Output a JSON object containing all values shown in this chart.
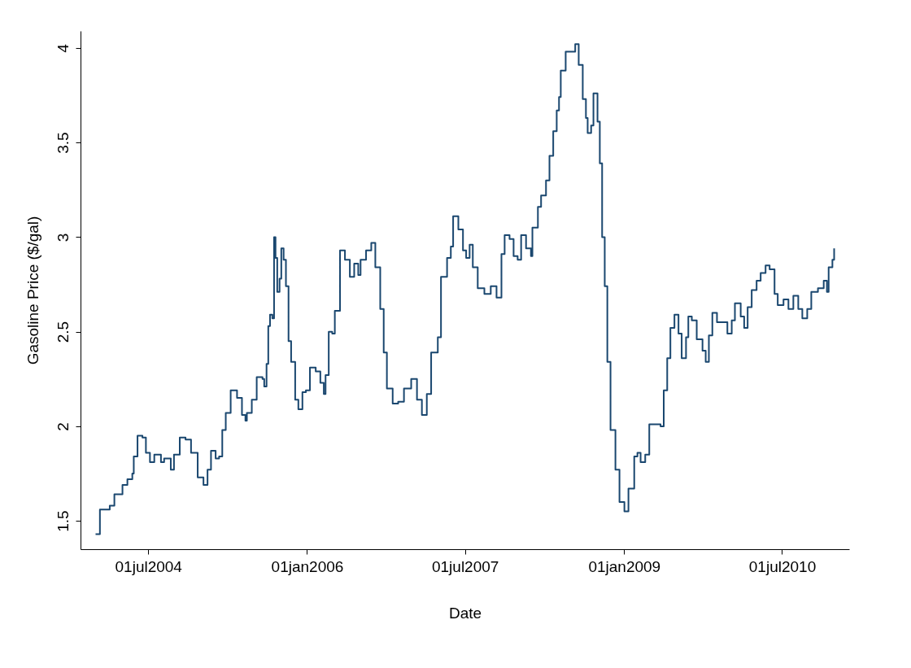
{
  "chart_data": {
    "type": "step",
    "xlabel": "Date",
    "ylabel": "Gasoline Price ($/gal)",
    "xlim": [
      "2003-11-10",
      "2011-02-18"
    ],
    "ylim": [
      1.35,
      4.09
    ],
    "xticks": [
      {
        "value": "2004-07-01",
        "label": "01jul2004"
      },
      {
        "value": "2006-01-01",
        "label": "01jan2006"
      },
      {
        "value": "2007-07-01",
        "label": "01jul2007"
      },
      {
        "value": "2009-01-01",
        "label": "01jan2009"
      },
      {
        "value": "2010-07-01",
        "label": "01jul2010"
      }
    ],
    "yticks": [
      1.5,
      2,
      2.5,
      3,
      3.5,
      4
    ],
    "grid": false,
    "series": [
      {
        "color": "#1a476f",
        "x": [
          "2004-01-01",
          "2004-01-16",
          "2004-02-19",
          "2004-03-06",
          "2004-04-03",
          "2004-04-20",
          "2004-05-07",
          "2004-05-12",
          "2004-05-25",
          "2004-06-11",
          "2004-06-23",
          "2004-07-07",
          "2004-07-22",
          "2004-08-14",
          "2004-08-25",
          "2004-09-17",
          "2004-09-28",
          "2004-10-18",
          "2004-11-07",
          "2004-11-26",
          "2004-12-19",
          "2005-01-08",
          "2005-01-22",
          "2005-02-03",
          "2005-02-19",
          "2005-03-03",
          "2005-03-14",
          "2005-03-26",
          "2005-04-12",
          "2005-05-04",
          "2005-05-21",
          "2005-06-02",
          "2005-06-07",
          "2005-06-24",
          "2005-07-11",
          "2005-07-31",
          "2005-08-06",
          "2005-08-14",
          "2005-08-20",
          "2005-08-26",
          "2005-09-03",
          "2005-09-09",
          "2005-09-14",
          "2005-09-20",
          "2005-09-28",
          "2005-10-04",
          "2005-10-12",
          "2005-10-20",
          "2005-10-29",
          "2005-11-07",
          "2005-11-21",
          "2005-12-02",
          "2005-12-16",
          "2005-12-28",
          "2006-01-11",
          "2006-01-31",
          "2006-02-16",
          "2006-02-28",
          "2006-03-06",
          "2006-03-17",
          "2006-03-29",
          "2006-04-07",
          "2006-04-25",
          "2006-05-12",
          "2006-05-29",
          "2006-06-13",
          "2006-06-27",
          "2006-07-05",
          "2006-07-24",
          "2006-08-11",
          "2006-08-25",
          "2006-09-11",
          "2006-09-23",
          "2006-10-04",
          "2006-10-24",
          "2006-11-12",
          "2006-12-02",
          "2006-12-27",
          "2007-01-16",
          "2007-02-02",
          "2007-02-19",
          "2007-03-06",
          "2007-03-29",
          "2007-04-09",
          "2007-04-30",
          "2007-05-13",
          "2007-05-21",
          "2007-06-08",
          "2007-06-24",
          "2007-07-05",
          "2007-07-17",
          "2007-07-28",
          "2007-08-14",
          "2007-09-06",
          "2007-09-28",
          "2007-10-18",
          "2007-11-04",
          "2007-11-15",
          "2007-12-02",
          "2007-12-16",
          "2007-12-30",
          "2008-01-11",
          "2008-01-28",
          "2008-02-14",
          "2008-02-19",
          "2008-03-09",
          "2008-03-20",
          "2008-04-06",
          "2008-04-18",
          "2008-05-01",
          "2008-05-13",
          "2008-05-21",
          "2008-05-27",
          "2008-06-13",
          "2008-06-30",
          "2008-07-16",
          "2008-07-28",
          "2008-08-11",
          "2008-08-22",
          "2008-08-28",
          "2008-09-09",
          "2008-09-17",
          "2008-10-01",
          "2008-10-09",
          "2008-10-17",
          "2008-10-26",
          "2008-11-04",
          "2008-11-15",
          "2008-12-02",
          "2008-12-16",
          "2009-01-02",
          "2009-01-16",
          "2009-02-05",
          "2009-02-16",
          "2009-02-27",
          "2009-03-15",
          "2009-03-29",
          "2009-04-23",
          "2009-05-07",
          "2009-05-18",
          "2009-05-30",
          "2009-06-10",
          "2009-06-24",
          "2009-07-08",
          "2009-07-19",
          "2009-08-03",
          "2009-08-11",
          "2009-08-23",
          "2009-09-09",
          "2009-09-29",
          "2009-10-10",
          "2009-10-21",
          "2009-11-02",
          "2009-11-18",
          "2009-12-10",
          "2009-12-24",
          "2010-01-08",
          "2010-01-19",
          "2010-02-08",
          "2010-02-20",
          "2010-03-04",
          "2010-03-18",
          "2010-04-04",
          "2010-04-18",
          "2010-05-05",
          "2010-05-19",
          "2010-06-05",
          "2010-06-16",
          "2010-07-06",
          "2010-07-23",
          "2010-08-09",
          "2010-08-26",
          "2010-09-09",
          "2010-09-26",
          "2010-10-10",
          "2010-11-02",
          "2010-11-22",
          "2010-12-03",
          "2010-12-09",
          "2010-12-22",
          "2010-12-28"
        ],
        "values": [
          1.43,
          1.56,
          1.58,
          1.64,
          1.69,
          1.72,
          1.75,
          1.84,
          1.95,
          1.94,
          1.86,
          1.81,
          1.85,
          1.81,
          1.83,
          1.77,
          1.85,
          1.94,
          1.93,
          1.86,
          1.73,
          1.69,
          1.77,
          1.87,
          1.83,
          1.84,
          1.98,
          2.07,
          2.19,
          2.15,
          2.06,
          2.03,
          2.07,
          2.14,
          2.26,
          2.25,
          2.21,
          2.33,
          2.53,
          2.59,
          2.57,
          3.0,
          2.89,
          2.71,
          2.78,
          2.94,
          2.88,
          2.74,
          2.45,
          2.34,
          2.14,
          2.09,
          2.18,
          2.19,
          2.31,
          2.29,
          2.23,
          2.17,
          2.27,
          2.5,
          2.49,
          2.61,
          2.93,
          2.88,
          2.79,
          2.86,
          2.8,
          2.88,
          2.93,
          2.97,
          2.84,
          2.62,
          2.39,
          2.2,
          2.12,
          2.13,
          2.2,
          2.25,
          2.14,
          2.06,
          2.17,
          2.39,
          2.47,
          2.79,
          2.89,
          2.95,
          3.11,
          3.04,
          2.93,
          2.89,
          2.96,
          2.84,
          2.73,
          2.7,
          2.74,
          2.68,
          2.91,
          3.01,
          2.99,
          2.9,
          2.88,
          3.01,
          2.94,
          2.9,
          3.05,
          3.16,
          3.22,
          3.3,
          3.43,
          3.56,
          3.67,
          3.74,
          3.88,
          3.98,
          3.98,
          4.02,
          3.91,
          3.73,
          3.63,
          3.55,
          3.59,
          3.76,
          3.61,
          3.39,
          3.0,
          2.74,
          2.34,
          1.98,
          1.77,
          1.6,
          1.55,
          1.67,
          1.84,
          1.86,
          1.81,
          1.85,
          2.01,
          2.01,
          2.0,
          2.19,
          2.36,
          2.52,
          2.59,
          2.49,
          2.36,
          2.47,
          2.58,
          2.56,
          2.46,
          2.4,
          2.34,
          2.48,
          2.6,
          2.55,
          2.55,
          2.49,
          2.56,
          2.65,
          2.58,
          2.52,
          2.63,
          2.72,
          2.77,
          2.81,
          2.85,
          2.83,
          2.7,
          2.64,
          2.67,
          2.62,
          2.69,
          2.62,
          2.57,
          2.62,
          2.71,
          2.73,
          2.77,
          2.71,
          2.84,
          2.88,
          2.94
        ]
      }
    ]
  }
}
